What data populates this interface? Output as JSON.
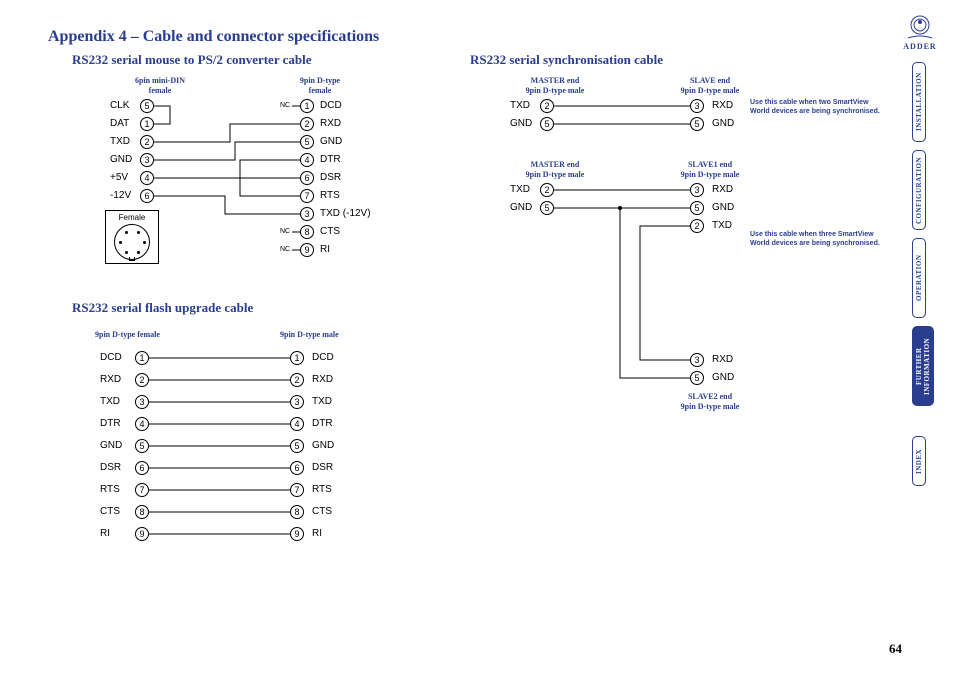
{
  "page": {
    "title": "Appendix 4 – Cable and connector specifications",
    "number": "64",
    "brand": "ADDER"
  },
  "colors": {
    "heading": "#2a3d8f",
    "text": "#000000",
    "bg": "#ffffff"
  },
  "nav": {
    "items": [
      {
        "label": "INSTALLATION",
        "active": false
      },
      {
        "label": "CONFIGURATION",
        "active": false
      },
      {
        "label": "OPERATION",
        "active": false
      },
      {
        "label": "FURTHER INFORMATION",
        "active": true
      },
      {
        "label": "INDEX",
        "active": false
      }
    ]
  },
  "diagrams": {
    "mouse_ps2": {
      "title": "RS232 serial mouse to PS/2 converter cable",
      "left_header": "6pin mini-DIN\nfemale",
      "right_header": "9pin D-type\nfemale",
      "left_pins": [
        {
          "label": "CLK",
          "num": "5"
        },
        {
          "label": "DAT",
          "num": "1"
        },
        {
          "label": "TXD",
          "num": "2"
        },
        {
          "label": "GND",
          "num": "3"
        },
        {
          "label": "+5V",
          "num": "4"
        },
        {
          "label": "-12V",
          "num": "6"
        }
      ],
      "right_pins": [
        {
          "num": "1",
          "label": "DCD",
          "nc": true
        },
        {
          "num": "2",
          "label": "RXD"
        },
        {
          "num": "5",
          "label": "GND"
        },
        {
          "num": "4",
          "label": "DTR"
        },
        {
          "num": "6",
          "label": "DSR"
        },
        {
          "num": "7",
          "label": "RTS"
        },
        {
          "num": "3",
          "label": "TXD (-12V)"
        },
        {
          "num": "8",
          "label": "CTS",
          "nc": true
        },
        {
          "num": "9",
          "label": "RI",
          "nc": true
        }
      ],
      "female_diagram_label": "Female"
    },
    "flash": {
      "title": "RS232 serial flash upgrade cable",
      "left_header": "9pin D-type female",
      "right_header": "9pin D-type male",
      "pins": [
        {
          "l_label": "DCD",
          "l_num": "1",
          "r_num": "1",
          "r_label": "DCD"
        },
        {
          "l_label": "RXD",
          "l_num": "2",
          "r_num": "2",
          "r_label": "RXD"
        },
        {
          "l_label": "TXD",
          "l_num": "3",
          "r_num": "3",
          "r_label": "TXD"
        },
        {
          "l_label": "DTR",
          "l_num": "4",
          "r_num": "4",
          "r_label": "DTR"
        },
        {
          "l_label": "GND",
          "l_num": "5",
          "r_num": "5",
          "r_label": "GND"
        },
        {
          "l_label": "DSR",
          "l_num": "6",
          "r_num": "6",
          "r_label": "DSR"
        },
        {
          "l_label": "RTS",
          "l_num": "7",
          "r_num": "7",
          "r_label": "RTS"
        },
        {
          "l_label": "CTS",
          "l_num": "8",
          "r_num": "8",
          "r_label": "CTS"
        },
        {
          "l_label": "RI",
          "l_num": "9",
          "r_num": "9",
          "r_label": "RI"
        }
      ]
    },
    "sync": {
      "title": "RS232 serial synchronisation cable",
      "cable2": {
        "master_header": "MASTER end\n9pin D-type male",
        "slave_header": "SLAVE end\n9pin D-type male",
        "rows": [
          {
            "l_label": "TXD",
            "l_num": "2",
            "r_num": "3",
            "r_label": "RXD"
          },
          {
            "l_label": "GND",
            "l_num": "5",
            "r_num": "5",
            "r_label": "GND"
          }
        ],
        "note": "Use this cable when two SmartView World devices are being synchronised."
      },
      "cable3": {
        "master_header": "MASTER end\n9pin D-type male",
        "slave1_header": "SLAVE1 end\n9pin D-type male",
        "slave2_header": "SLAVE2 end\n9pin D-type male",
        "master_rows": [
          {
            "label": "TXD",
            "num": "2"
          },
          {
            "label": "GND",
            "num": "5"
          }
        ],
        "slave1_rows": [
          {
            "num": "3",
            "label": "RXD"
          },
          {
            "num": "5",
            "label": "GND"
          },
          {
            "num": "2",
            "label": "TXD"
          }
        ],
        "slave2_rows": [
          {
            "num": "3",
            "label": "RXD"
          },
          {
            "num": "5",
            "label": "GND"
          }
        ],
        "note": "Use this cable when three SmartView World devices are being synchronised."
      }
    }
  }
}
